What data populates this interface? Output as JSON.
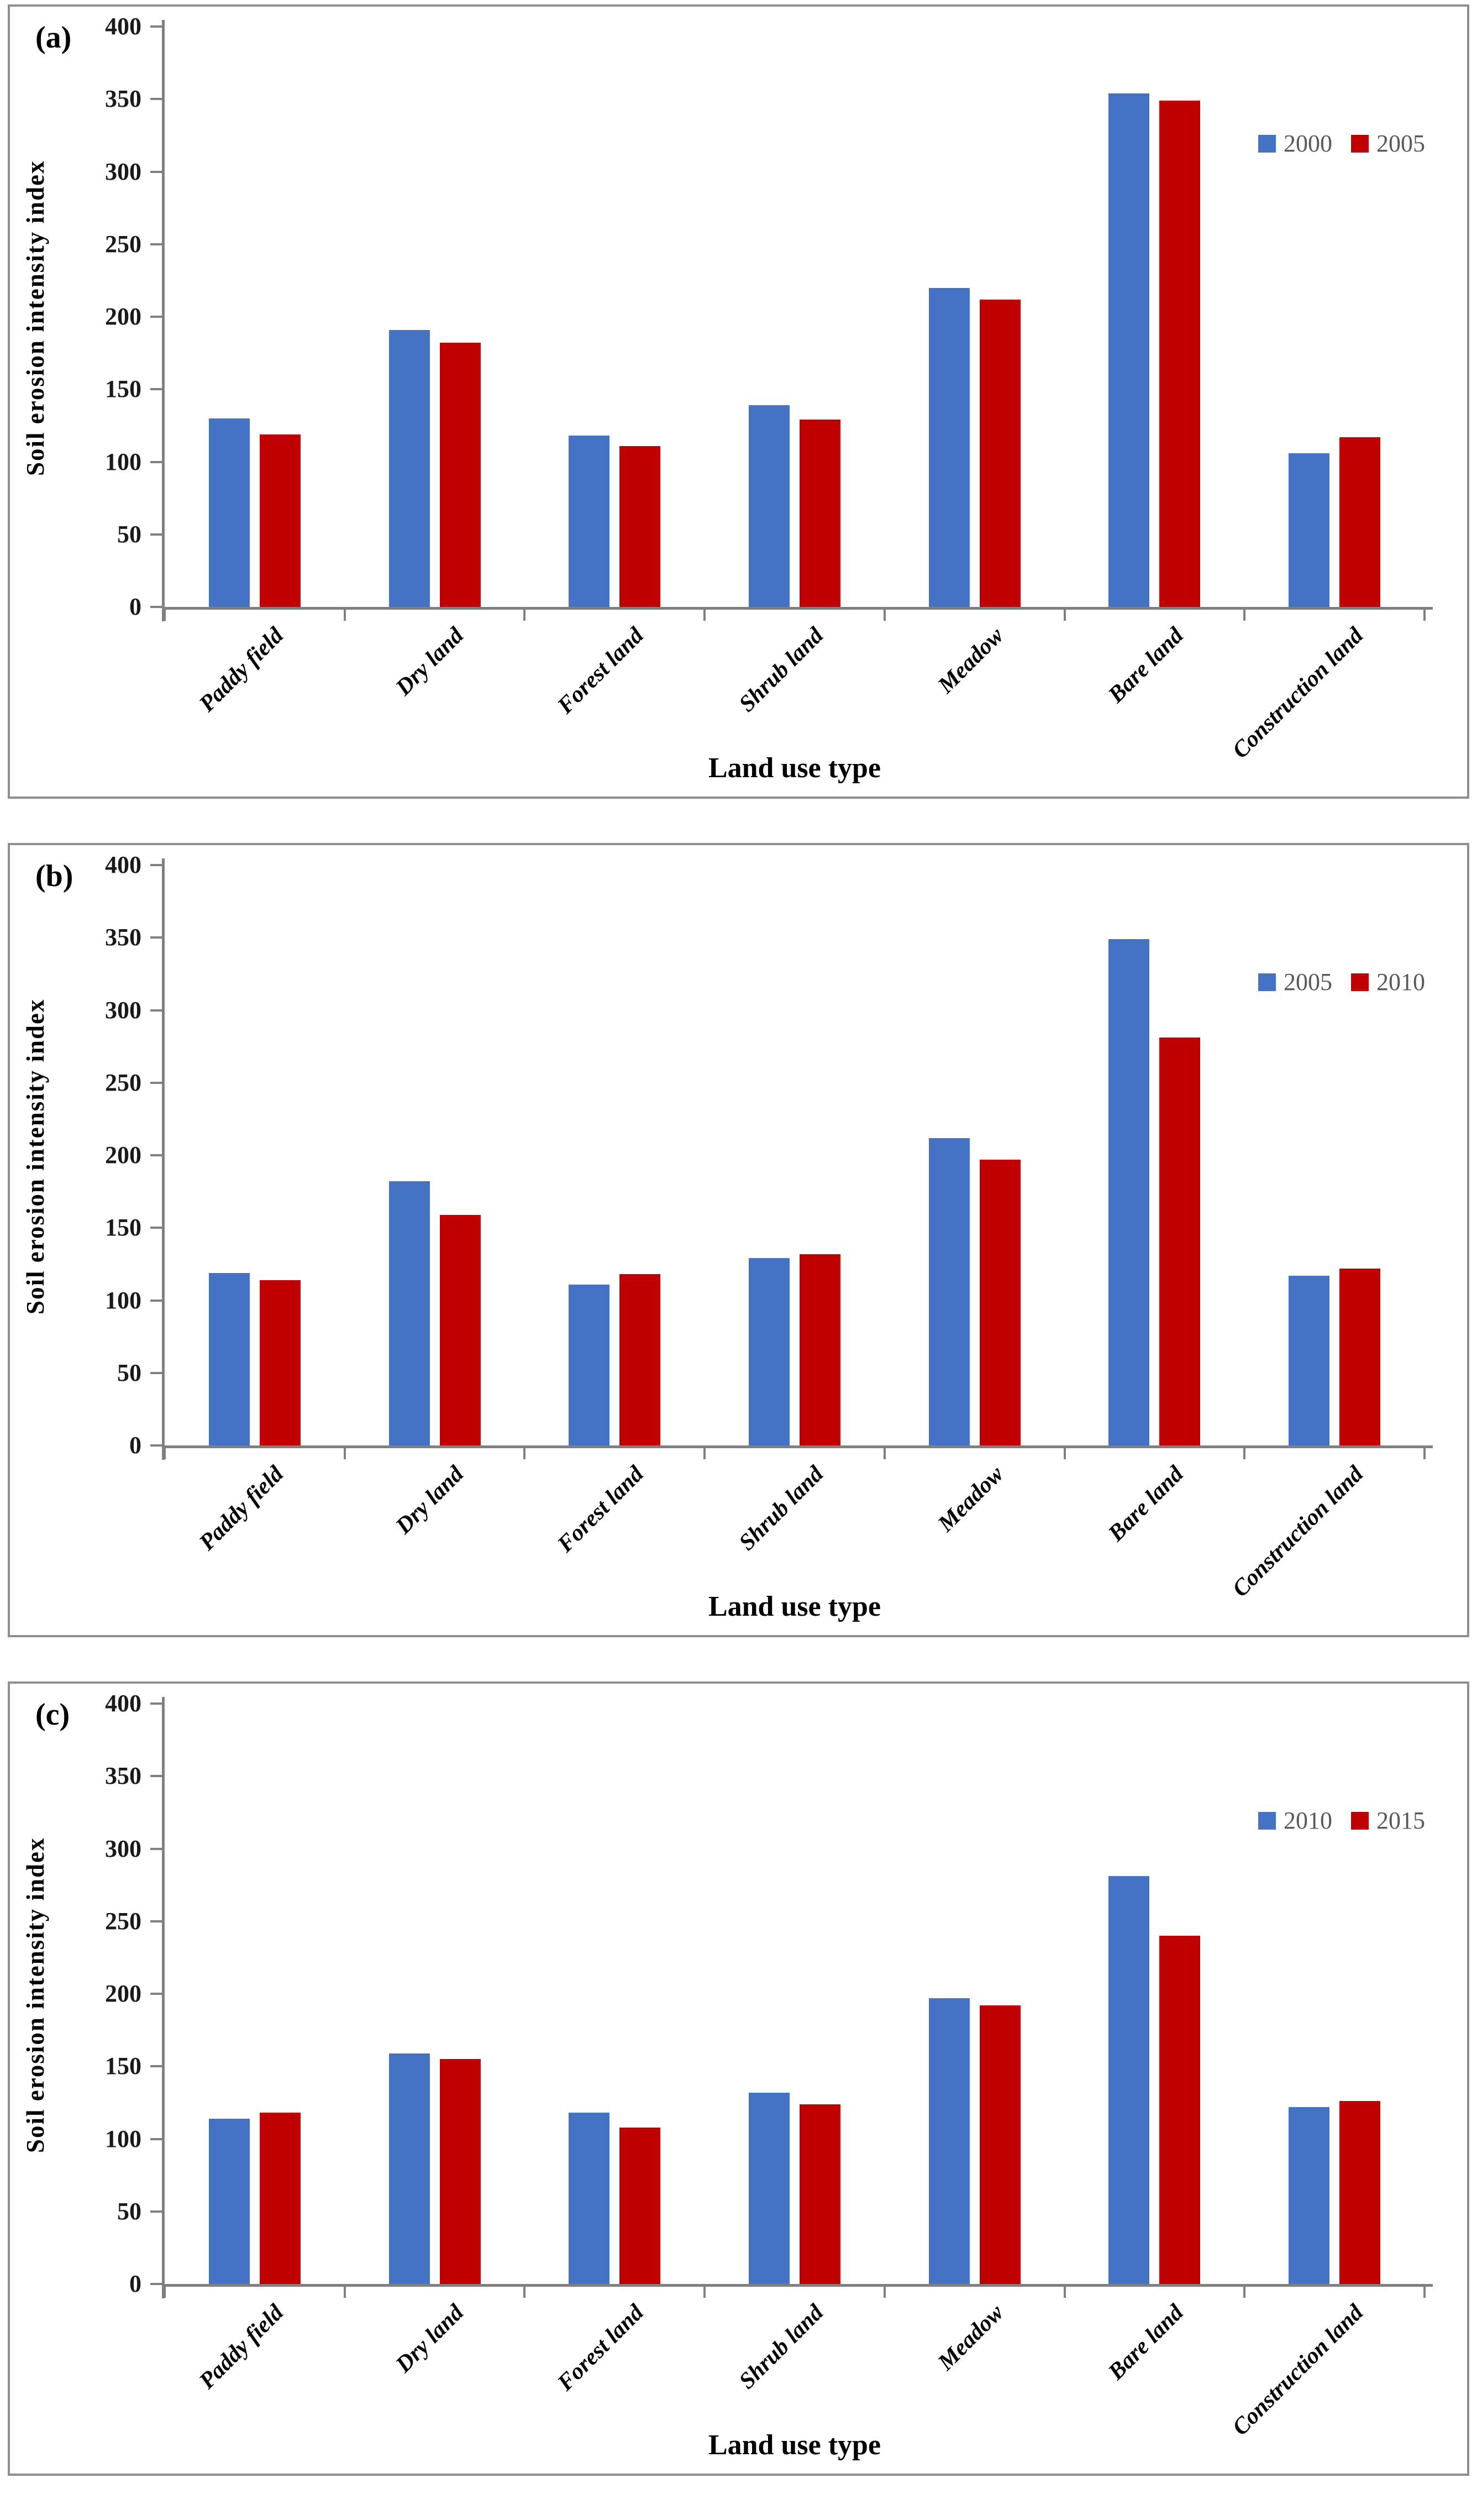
{
  "figure": {
    "background": "#ffffff",
    "y_axis_label": "Soil erosion intensity index",
    "x_axis_label": "Land use type",
    "categories": [
      "Paddy field",
      "Dry land",
      "Forest land",
      "Shrub land",
      "Meadow",
      "Bare land",
      "Construction land"
    ],
    "y_ticks": [
      0,
      50,
      100,
      150,
      200,
      250,
      300,
      350,
      400
    ],
    "series_colors": [
      "#4472C4",
      "#C00000"
    ],
    "axis_color": "#808080",
    "tick_label_color": "#1a1a1a",
    "legend_text_color": "#595959",
    "panel_border_color": "#8f8f8f"
  },
  "chart_data": [
    {
      "type": "bar",
      "panel_tag": "(a)",
      "categories": [
        "Paddy field",
        "Dry land",
        "Forest land",
        "Shrub land",
        "Meadow",
        "Bare land",
        "Construction land"
      ],
      "series": [
        {
          "name": "2000",
          "color": "#4472C4",
          "values": [
            130,
            191,
            118,
            139,
            220,
            354,
            106
          ]
        },
        {
          "name": "2005",
          "color": "#C00000",
          "values": [
            119,
            182,
            111,
            129,
            212,
            349,
            117
          ]
        }
      ],
      "xlabel": "Land use type",
      "ylabel": "Soil erosion intensity index",
      "ylim": [
        0,
        400
      ],
      "y_tick_step": 50,
      "grid": false,
      "legend_position": "upper right"
    },
    {
      "type": "bar",
      "panel_tag": "(b)",
      "categories": [
        "Paddy field",
        "Dry land",
        "Forest land",
        "Shrub land",
        "Meadow",
        "Bare land",
        "Construction land"
      ],
      "series": [
        {
          "name": "2005",
          "color": "#4472C4",
          "values": [
            119,
            182,
            111,
            129,
            212,
            349,
            117
          ]
        },
        {
          "name": "2010",
          "color": "#C00000",
          "values": [
            114,
            159,
            118,
            132,
            197,
            281,
            122
          ]
        }
      ],
      "xlabel": "Land use type",
      "ylabel": "Soil erosion intensity index",
      "ylim": [
        0,
        400
      ],
      "y_tick_step": 50,
      "grid": false,
      "legend_position": "upper right"
    },
    {
      "type": "bar",
      "panel_tag": "(c)",
      "categories": [
        "Paddy field",
        "Dry land",
        "Forest land",
        "Shrub land",
        "Meadow",
        "Bare land",
        "Construction land"
      ],
      "series": [
        {
          "name": "2010",
          "color": "#4472C4",
          "values": [
            114,
            159,
            118,
            132,
            197,
            281,
            122
          ]
        },
        {
          "name": "2015",
          "color": "#C00000",
          "values": [
            118,
            155,
            108,
            124,
            192,
            240,
            126
          ]
        }
      ],
      "xlabel": "Land use type",
      "ylabel": "Soil erosion intensity index",
      "ylim": [
        0,
        400
      ],
      "y_tick_step": 50,
      "grid": false,
      "legend_position": "upper right"
    }
  ]
}
